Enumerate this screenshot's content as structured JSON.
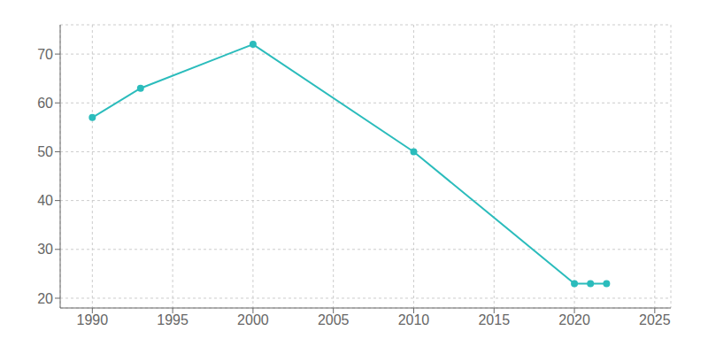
{
  "chart_data": {
    "type": "line",
    "x": [
      1990,
      1993,
      2000,
      2010,
      2020,
      2021,
      2022
    ],
    "values": [
      57,
      63,
      72,
      50,
      23,
      23,
      23
    ],
    "color": "#2bbcbc",
    "marker": "circle",
    "xlim": [
      1988,
      2026
    ],
    "ylim": [
      18,
      76
    ],
    "xticks": [
      1990,
      1995,
      2000,
      2005,
      2010,
      2015,
      2020,
      2025
    ],
    "yticks": [
      20,
      30,
      40,
      50,
      60,
      70
    ],
    "grid": true
  }
}
